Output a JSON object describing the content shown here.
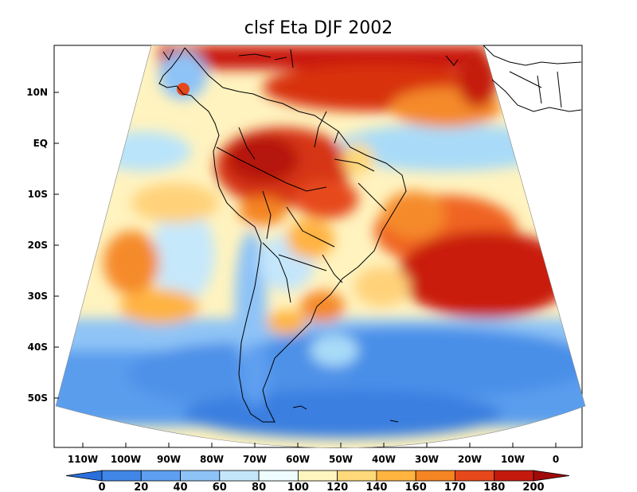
{
  "title": "clsf Eta DJF 2002",
  "lat_labels": [
    "10N",
    "EQ",
    "10S",
    "20S",
    "30S",
    "40S",
    "50S"
  ],
  "lon_labels": [
    "110W",
    "100W",
    "90W",
    "80W",
    "70W",
    "60W",
    "50W",
    "40W",
    "30W",
    "20W",
    "10W",
    "0"
  ],
  "colorbar": {
    "labels": [
      "0",
      "20",
      "40",
      "60",
      "80",
      "100",
      "120",
      "140",
      "160",
      "170",
      "180",
      "200"
    ],
    "colors": [
      "#2a6fdb",
      "#3f86e6",
      "#5e9ff0",
      "#8ec3f7",
      "#c4e6fb",
      "#eefcff",
      "#fff6bf",
      "#ffd97a",
      "#ffb43f",
      "#f58423",
      "#e6481c",
      "#c41a0e",
      "#a00a0a"
    ]
  },
  "regions": {
    "land": "South America",
    "high_values": [
      "Amazon basin",
      "northern ocean strip",
      "South Atlantic subtropical"
    ],
    "low_values": [
      "southern ocean",
      "Patagonia",
      "Andes"
    ]
  }
}
